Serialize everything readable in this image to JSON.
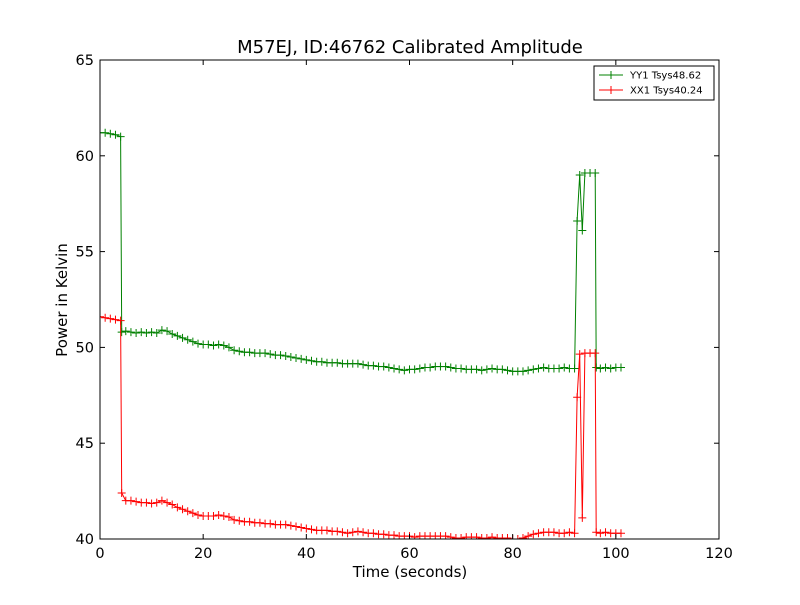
{
  "chart_data": {
    "type": "line",
    "title": "M57EJ, ID:46762 Calibrated Amplitude",
    "xlabel": "Time (seconds)",
    "ylabel": "Power in Kelvin",
    "xlim": [
      0,
      120
    ],
    "ylim": [
      40,
      65
    ],
    "xticks": [
      0,
      20,
      40,
      60,
      80,
      100,
      120
    ],
    "yticks": [
      40,
      45,
      50,
      55,
      60,
      65
    ],
    "grid": false,
    "legend_position": "top-right",
    "marker": "+",
    "series": [
      {
        "name": "YY1 Tsys48.62",
        "color": "#008000",
        "x": [
          0,
          1,
          2,
          3,
          4,
          4.2,
          5,
          6,
          7,
          8,
          9,
          10,
          11,
          12,
          13,
          14,
          15,
          16,
          17,
          18,
          19,
          20,
          21,
          22,
          23,
          24,
          25,
          26,
          27,
          28,
          29,
          30,
          31,
          32,
          33,
          34,
          35,
          36,
          37,
          38,
          39,
          40,
          41,
          42,
          43,
          44,
          45,
          46,
          47,
          48,
          49,
          50,
          51,
          52,
          53,
          54,
          55,
          56,
          57,
          58,
          59,
          60,
          61,
          62,
          63,
          64,
          65,
          66,
          67,
          68,
          69,
          70,
          71,
          72,
          73,
          74,
          75,
          76,
          77,
          78,
          79,
          80,
          81,
          82,
          83,
          84,
          85,
          86,
          87,
          88,
          89,
          90,
          91,
          92,
          92.5,
          93,
          93.5,
          94,
          95,
          96,
          96.2,
          97,
          98,
          99,
          100,
          101
        ],
        "y": [
          61.2,
          61.2,
          61.15,
          61.1,
          61.0,
          50.8,
          50.85,
          50.8,
          50.75,
          50.8,
          50.75,
          50.8,
          50.75,
          50.9,
          50.85,
          50.7,
          50.6,
          50.5,
          50.4,
          50.3,
          50.2,
          50.15,
          50.15,
          50.1,
          50.15,
          50.1,
          50.0,
          49.85,
          49.8,
          49.75,
          49.75,
          49.7,
          49.7,
          49.7,
          49.65,
          49.6,
          49.6,
          49.55,
          49.5,
          49.45,
          49.4,
          49.35,
          49.3,
          49.25,
          49.25,
          49.2,
          49.2,
          49.2,
          49.15,
          49.15,
          49.15,
          49.15,
          49.1,
          49.05,
          49.05,
          49.0,
          49.0,
          48.95,
          48.9,
          48.85,
          48.8,
          48.85,
          48.85,
          48.9,
          48.95,
          48.95,
          49.0,
          49.0,
          49.0,
          48.95,
          48.9,
          48.9,
          48.85,
          48.85,
          48.85,
          48.8,
          48.85,
          48.9,
          48.85,
          48.85,
          48.8,
          48.75,
          48.75,
          48.75,
          48.8,
          48.85,
          48.9,
          48.95,
          48.9,
          48.9,
          48.9,
          48.95,
          48.9,
          48.9,
          56.6,
          59.0,
          56.1,
          59.1,
          59.1,
          59.1,
          48.95,
          48.9,
          48.95,
          48.9,
          48.95,
          48.95
        ]
      },
      {
        "name": "XX1 Tsys40.24",
        "color": "#ff0000",
        "x": [
          0,
          1,
          2,
          3,
          4,
          4.2,
          5,
          6,
          7,
          8,
          9,
          10,
          11,
          12,
          13,
          14,
          15,
          16,
          17,
          18,
          19,
          20,
          21,
          22,
          23,
          24,
          25,
          26,
          27,
          28,
          29,
          30,
          31,
          32,
          33,
          34,
          35,
          36,
          37,
          38,
          39,
          40,
          41,
          42,
          43,
          44,
          45,
          46,
          47,
          48,
          49,
          50,
          51,
          52,
          53,
          54,
          55,
          56,
          57,
          58,
          59,
          60,
          61,
          62,
          63,
          64,
          65,
          66,
          67,
          68,
          69,
          70,
          71,
          72,
          73,
          74,
          75,
          76,
          77,
          78,
          79,
          80,
          81,
          82,
          83,
          84,
          85,
          86,
          87,
          88,
          89,
          90,
          91,
          92,
          92.5,
          93,
          93.5,
          94,
          95,
          96,
          96.2,
          97,
          98,
          99,
          100,
          101
        ],
        "y": [
          51.6,
          51.55,
          51.5,
          51.45,
          51.4,
          42.4,
          42.0,
          42.0,
          41.95,
          41.9,
          41.9,
          41.85,
          41.9,
          42.0,
          41.9,
          41.8,
          41.65,
          41.55,
          41.45,
          41.35,
          41.25,
          41.2,
          41.2,
          41.2,
          41.25,
          41.2,
          41.15,
          41.0,
          40.95,
          40.9,
          40.9,
          40.85,
          40.85,
          40.8,
          40.8,
          40.75,
          40.75,
          40.75,
          40.7,
          40.65,
          40.6,
          40.55,
          40.5,
          40.45,
          40.45,
          40.45,
          40.4,
          40.4,
          40.35,
          40.3,
          40.35,
          40.4,
          40.35,
          40.3,
          40.3,
          40.25,
          40.25,
          40.2,
          40.2,
          40.15,
          40.15,
          40.15,
          40.1,
          40.15,
          40.15,
          40.15,
          40.15,
          40.15,
          40.15,
          40.1,
          40.05,
          40.05,
          40.1,
          40.1,
          40.1,
          40.05,
          40.05,
          40.1,
          40.05,
          40.05,
          40.05,
          40.0,
          40.0,
          40.05,
          40.15,
          40.25,
          40.3,
          40.35,
          40.35,
          40.35,
          40.3,
          40.3,
          40.35,
          40.3,
          47.4,
          49.65,
          41.1,
          49.7,
          49.7,
          49.7,
          40.35,
          40.3,
          40.35,
          40.3,
          40.3,
          40.3
        ]
      }
    ]
  }
}
